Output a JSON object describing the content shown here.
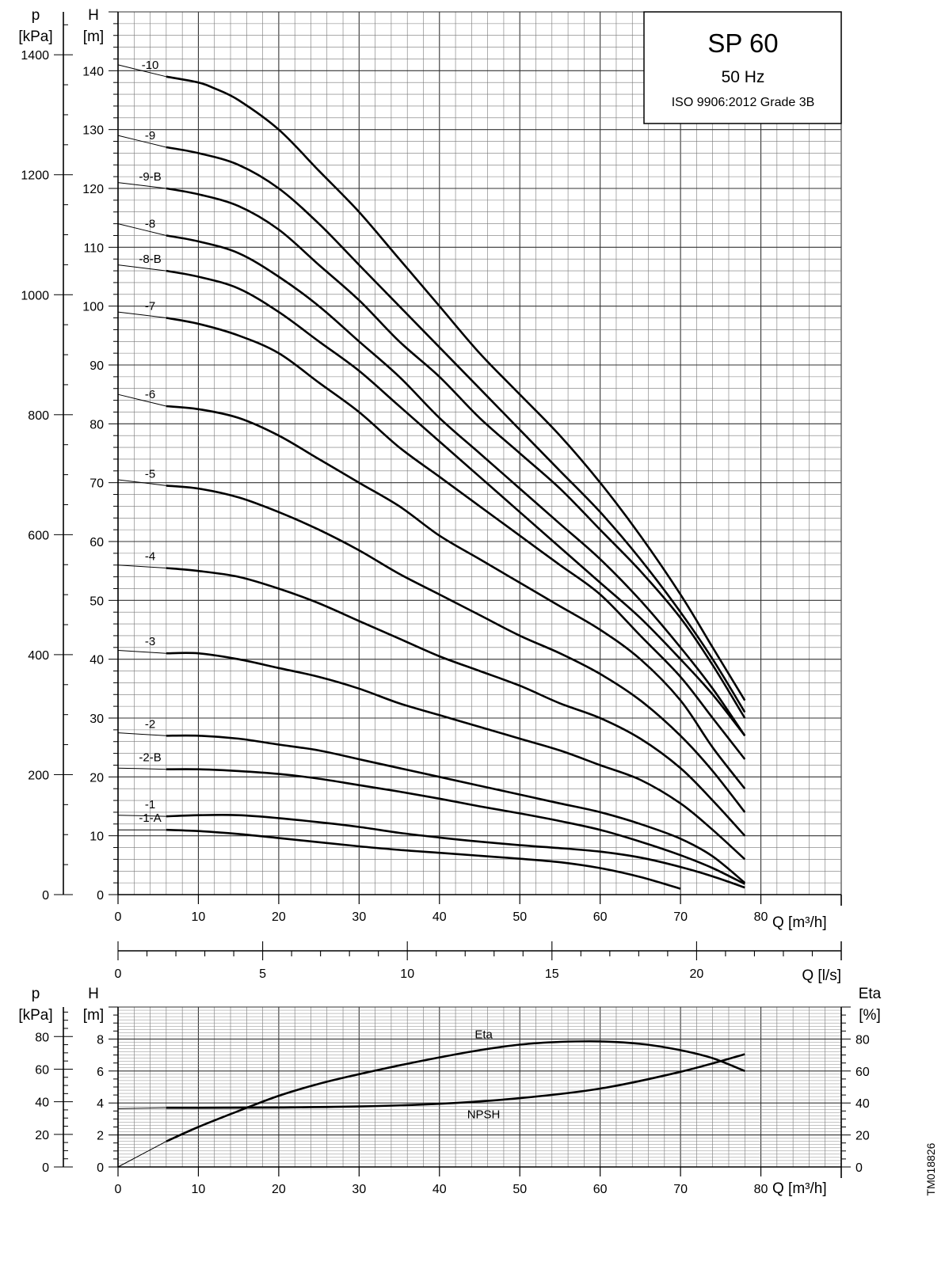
{
  "title_box": {
    "title": "SP 60",
    "frequency": "50 Hz",
    "standard": "ISO 9906:2012 Grade 3B"
  },
  "watermark": "TM018826",
  "chart_data": [
    {
      "type": "line",
      "xlabel": "Q [m³/h]",
      "xlim": [
        0,
        90
      ],
      "x_ticks": [
        0,
        10,
        20,
        30,
        40,
        50,
        60,
        70,
        80
      ],
      "ylabel_left": "p [kPa]",
      "ylabel_p": "p",
      "ylabel_p_unit": "[kPa]",
      "ylabel_h": "H",
      "ylabel_h_unit": "[m]",
      "ylim_H": [
        0,
        150
      ],
      "y_ticks_H": [
        0,
        10,
        20,
        30,
        40,
        50,
        60,
        70,
        80,
        90,
        100,
        110,
        120,
        130,
        140
      ],
      "y_ticks_p": [
        0,
        200,
        400,
        600,
        800,
        1000,
        1200,
        1400
      ],
      "secondary_axis": {
        "label": "Q [l/s]",
        "ticks": [
          0,
          5,
          10,
          15,
          20
        ]
      },
      "grid": true,
      "series": [
        {
          "name": "-10",
          "x": [
            0,
            6,
            10,
            12,
            15,
            20,
            25,
            30,
            35,
            40,
            45,
            50,
            55,
            60,
            65,
            70,
            74,
            78
          ],
          "y": [
            141,
            139,
            138,
            137,
            135,
            130,
            123,
            116,
            108,
            100,
            92,
            85,
            78,
            70,
            61,
            51,
            42,
            33
          ]
        },
        {
          "name": "-9",
          "x": [
            0,
            6,
            10,
            15,
            20,
            25,
            30,
            35,
            40,
            45,
            50,
            55,
            60,
            65,
            70,
            74,
            78
          ],
          "y": [
            129,
            127,
            126,
            124,
            120,
            114,
            107,
            100,
            93,
            86,
            79,
            72,
            65,
            57,
            48,
            40,
            31
          ]
        },
        {
          "name": "-9-B",
          "x": [
            0,
            6,
            10,
            15,
            20,
            25,
            30,
            35,
            40,
            45,
            50,
            55,
            60,
            65,
            70,
            74,
            78
          ],
          "y": [
            121,
            120,
            119,
            117,
            113,
            107,
            101,
            94,
            88,
            81,
            75,
            69,
            62,
            55,
            47,
            39,
            30
          ]
        },
        {
          "name": "-8",
          "x": [
            0,
            6,
            10,
            15,
            20,
            25,
            30,
            35,
            40,
            45,
            50,
            55,
            60,
            65,
            70,
            74,
            78
          ],
          "y": [
            114,
            112,
            111,
            109,
            105,
            100,
            94,
            88,
            81,
            75,
            69,
            63,
            57,
            50,
            42,
            35,
            27
          ]
        },
        {
          "name": "-8-B",
          "x": [
            0,
            6,
            10,
            15,
            20,
            25,
            30,
            35,
            40,
            45,
            50,
            55,
            60,
            65,
            70,
            74,
            78
          ],
          "y": [
            107,
            106,
            105,
            103,
            99,
            94,
            89,
            83,
            77,
            71,
            65,
            59,
            53,
            47,
            40,
            34,
            27
          ]
        },
        {
          "name": "-7",
          "x": [
            0,
            6,
            10,
            15,
            20,
            25,
            30,
            35,
            40,
            45,
            50,
            55,
            60,
            65,
            70,
            74,
            78
          ],
          "y": [
            99,
            98,
            97,
            95,
            92,
            87,
            82,
            76,
            71,
            66,
            61,
            56,
            51,
            44,
            37,
            30,
            23
          ]
        },
        {
          "name": "-6",
          "x": [
            0,
            6,
            10,
            15,
            20,
            25,
            30,
            35,
            40,
            45,
            50,
            55,
            60,
            65,
            70,
            74,
            78
          ],
          "y": [
            85,
            83,
            82.5,
            81,
            78,
            74,
            70,
            66,
            61,
            57,
            53,
            49,
            45,
            40,
            33,
            25,
            18
          ]
        },
        {
          "name": "-5",
          "x": [
            0,
            6,
            10,
            15,
            20,
            25,
            30,
            35,
            40,
            45,
            50,
            55,
            60,
            65,
            70,
            74,
            78
          ],
          "y": [
            70.5,
            69.5,
            69,
            67.5,
            65,
            62,
            58.5,
            54.5,
            51,
            47.5,
            44,
            41,
            37.5,
            33,
            27,
            21,
            14
          ]
        },
        {
          "name": "-4",
          "x": [
            0,
            6,
            10,
            15,
            20,
            25,
            30,
            35,
            40,
            45,
            50,
            55,
            60,
            65,
            70,
            74,
            78
          ],
          "y": [
            56,
            55.5,
            55,
            54,
            52,
            49.5,
            46.5,
            43.5,
            40.5,
            38,
            35.5,
            32.5,
            30,
            26.5,
            21.5,
            16,
            10
          ]
        },
        {
          "name": "-3",
          "x": [
            0,
            6,
            10,
            15,
            20,
            25,
            30,
            35,
            40,
            45,
            50,
            55,
            60,
            65,
            70,
            74,
            78
          ],
          "y": [
            41.5,
            41,
            41,
            40,
            38.5,
            37,
            35,
            32.5,
            30.5,
            28.5,
            26.5,
            24.5,
            22,
            19.5,
            15.5,
            11,
            6
          ]
        },
        {
          "name": "-2",
          "x": [
            0,
            6,
            10,
            15,
            20,
            25,
            30,
            35,
            40,
            45,
            50,
            55,
            60,
            65,
            70,
            74,
            78
          ],
          "y": [
            27.5,
            27,
            27,
            26.5,
            25.5,
            24.5,
            23,
            21.5,
            20,
            18.5,
            17,
            15.5,
            14,
            12,
            9.5,
            6.5,
            2
          ]
        },
        {
          "name": "-2-B",
          "x": [
            0,
            6,
            10,
            15,
            20,
            25,
            30,
            35,
            40,
            45,
            50,
            55,
            60,
            65,
            70,
            74,
            78
          ],
          "y": [
            21.5,
            21.3,
            21.3,
            21,
            20.5,
            19.7,
            18.6,
            17.5,
            16.3,
            15,
            13.8,
            12.5,
            11,
            9,
            6.7,
            4.5,
            1.8
          ]
        },
        {
          "name": "-1",
          "x": [
            0,
            6,
            10,
            15,
            20,
            25,
            30,
            35,
            40,
            45,
            50,
            55,
            60,
            65,
            70,
            74,
            78
          ],
          "y": [
            13.5,
            13.3,
            13.5,
            13.5,
            13,
            12.3,
            11.5,
            10.5,
            9.7,
            9,
            8.4,
            7.9,
            7.3,
            6.3,
            4.7,
            3.1,
            1.2
          ]
        },
        {
          "name": "-1-A",
          "x": [
            0,
            6,
            10,
            15,
            20,
            25,
            30,
            35,
            40,
            45,
            50,
            55,
            60,
            65,
            70
          ],
          "y": [
            11,
            11,
            10.8,
            10.3,
            9.6,
            8.9,
            8.2,
            7.6,
            7.1,
            6.6,
            6.1,
            5.5,
            4.5,
            3,
            1
          ]
        }
      ]
    },
    {
      "type": "line",
      "xlabel": "Q [m³/h]",
      "xlim": [
        0,
        90
      ],
      "x_ticks": [
        0,
        10,
        20,
        30,
        40,
        50,
        60,
        70,
        80
      ],
      "ylabel_left": "p [kPa]",
      "ylabel_p": "p",
      "ylabel_p_unit": "[kPa]",
      "ylabel_h": "H",
      "ylabel_h_unit": "[m]",
      "ylabel_right": "Eta [%]",
      "ylabel_eta": "Eta",
      "ylabel_eta_unit": "[%]",
      "ylim_H": [
        0,
        10
      ],
      "y_ticks_H": [
        0,
        2,
        4,
        6,
        8
      ],
      "y_ticks_p": [
        0,
        20,
        40,
        60,
        80
      ],
      "y_ticks_eta": [
        0,
        20,
        40,
        60,
        80
      ],
      "grid": true,
      "series": [
        {
          "name": "Eta",
          "axis": "eta",
          "x": [
            0,
            6,
            10,
            15,
            20,
            25,
            30,
            35,
            40,
            45,
            50,
            55,
            60,
            65,
            70,
            74,
            78
          ],
          "y": [
            0,
            16,
            25,
            35,
            44.5,
            52,
            58,
            63.5,
            68.5,
            73,
            76.5,
            78.2,
            78.5,
            77,
            73,
            68,
            60
          ]
        },
        {
          "name": "NPSH",
          "axis": "H",
          "x": [
            0,
            6,
            10,
            20,
            30,
            40,
            50,
            60,
            70,
            78
          ],
          "y": [
            3.65,
            3.7,
            3.7,
            3.72,
            3.78,
            3.95,
            4.3,
            4.9,
            5.95,
            7.05
          ]
        }
      ]
    }
  ]
}
